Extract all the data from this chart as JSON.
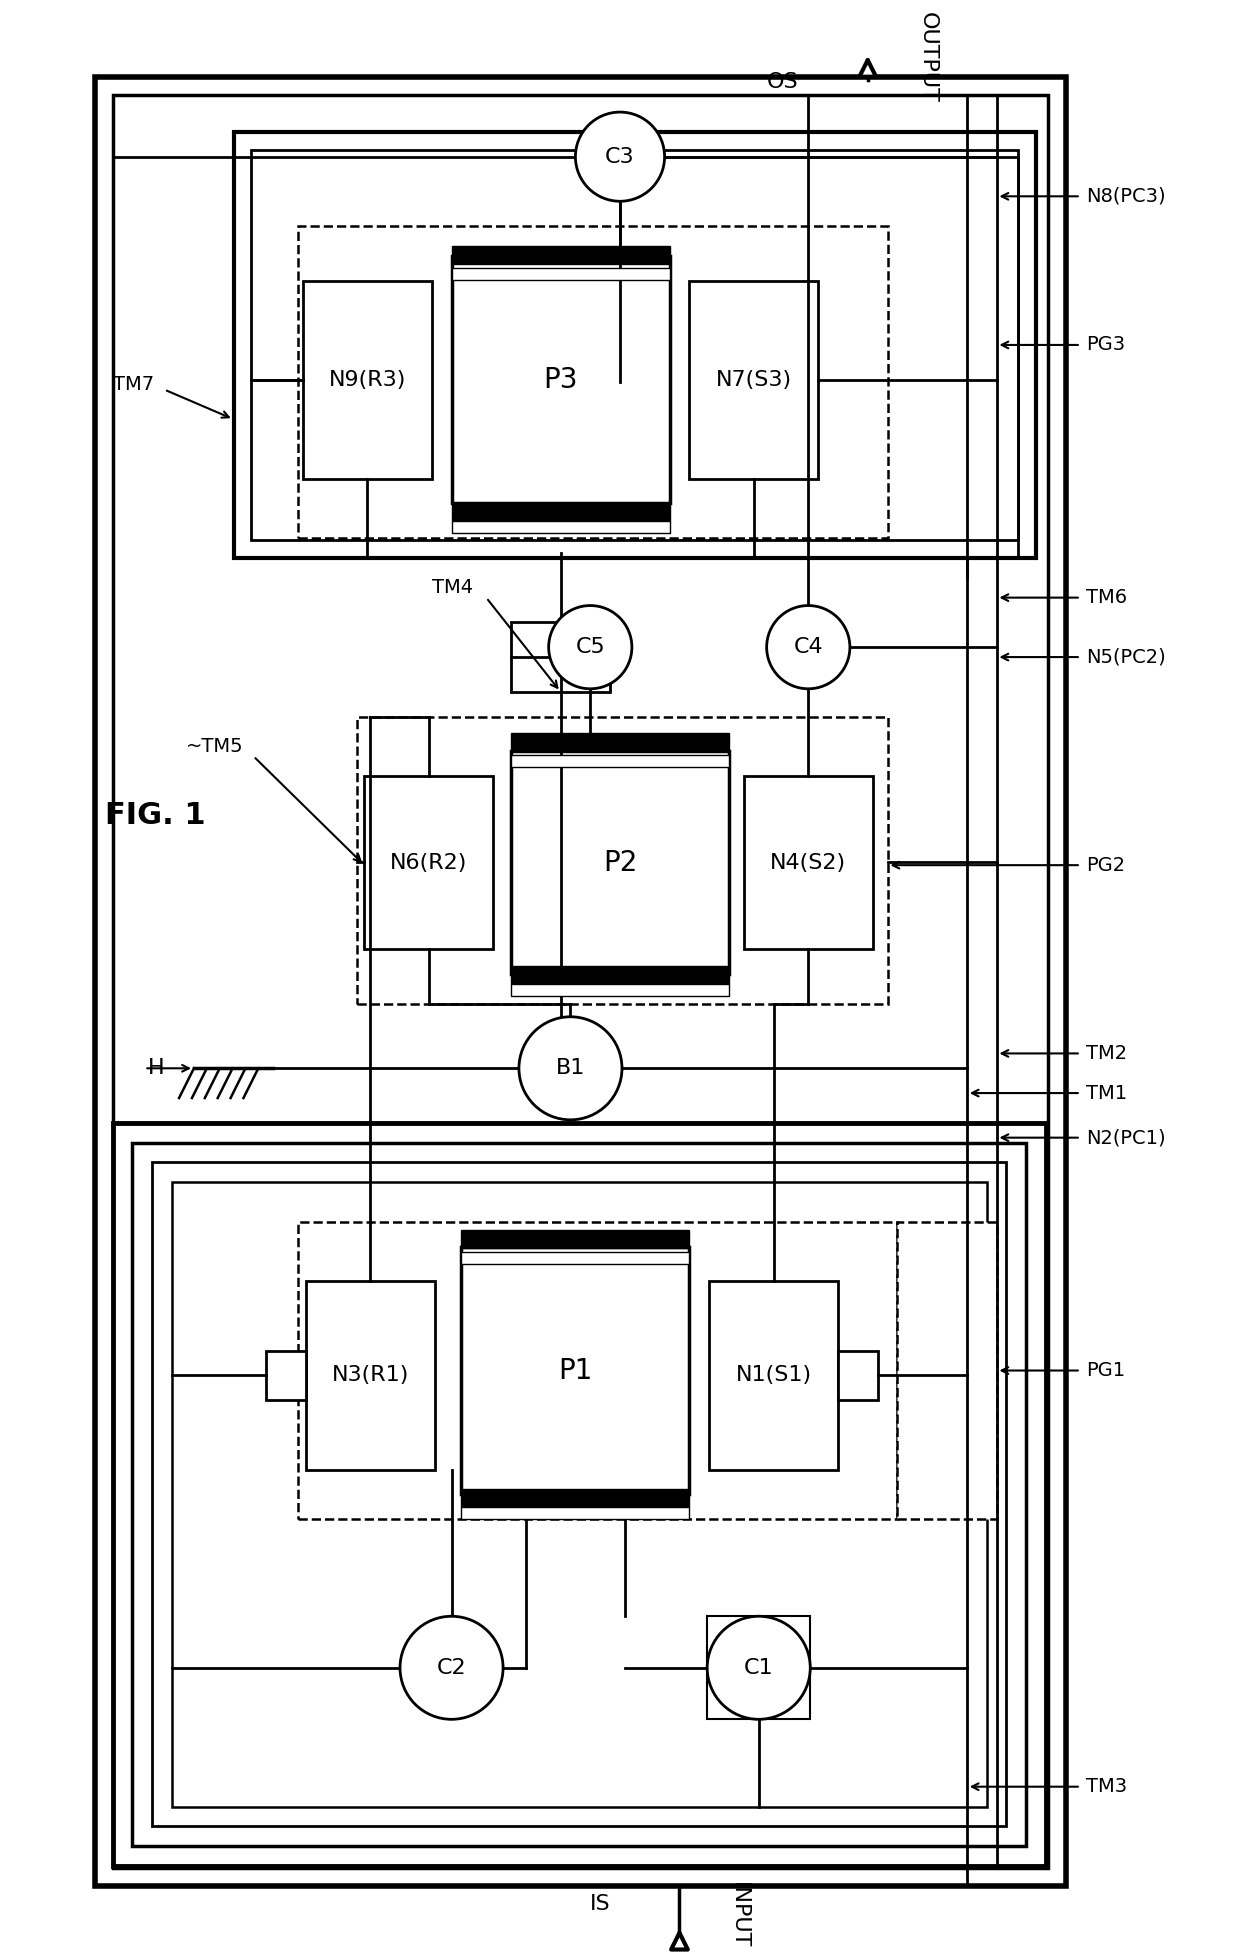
{
  "title": "FIG. 1",
  "bg_color": "#ffffff",
  "fig_width": 12.4,
  "fig_height": 19.54,
  "labels": {
    "input": "INPUT",
    "output": "OUTPUT",
    "IS": "IS",
    "OS": "OS",
    "H": "H",
    "TM1": "TM1",
    "TM2": "TM2",
    "TM3": "TM3",
    "TM4": "TM4",
    "TM5": "TM5",
    "TM6": "TM6",
    "TM7": "TM7",
    "B1": "B1",
    "C1": "C1",
    "C2": "C2",
    "C3": "C3",
    "C4": "C4",
    "C5": "C5",
    "PG1": "PG1",
    "PG2": "PG2",
    "PG3": "PG3",
    "N1S1": "N1(S1)",
    "N2PC1": "N2(PC1)",
    "N3R1": "N3(R1)",
    "N4S2": "N4(S2)",
    "N5PC2": "N5(PC2)",
    "N6R2": "N6(R2)",
    "N7S3": "N7(S3)",
    "N8PC3": "N8(PC3)",
    "N9R3": "N9(R3)",
    "P1": "P1",
    "P2": "P2",
    "P3": "P3"
  }
}
